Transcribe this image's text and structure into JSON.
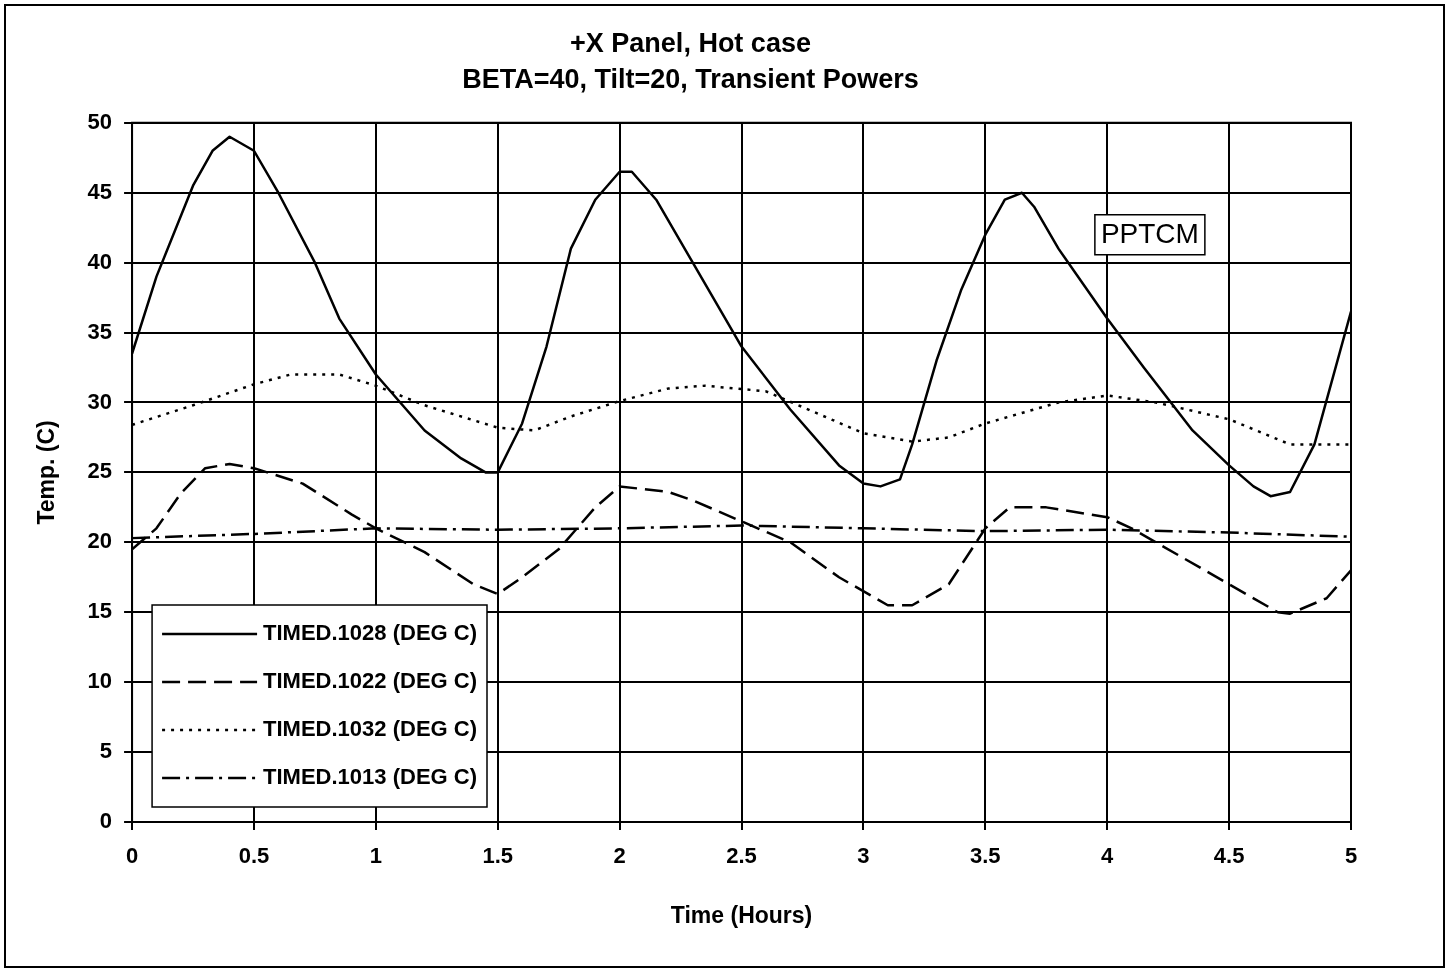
{
  "chart_data": {
    "type": "line",
    "title": "+X Panel, Hot case",
    "subtitle": "BETA=40, Tilt=20, Transient Powers",
    "xlabel": "Time (Hours)",
    "ylabel": "Temp. (C)",
    "xlim": [
      0,
      5
    ],
    "xticks": [
      0,
      0.5,
      1,
      1.5,
      2,
      2.5,
      3,
      3.5,
      4,
      4.5,
      5
    ],
    "ylim": [
      0,
      50
    ],
    "yticks": [
      0,
      5,
      10,
      15,
      20,
      25,
      30,
      35,
      40,
      45,
      50
    ],
    "grid": true,
    "legend": "bottom left",
    "marker": "none",
    "annotations": [
      "PPTCM"
    ],
    "series": [
      {
        "name": "TIMED.1028 (DEG C)",
        "color": "#000000",
        "line_style": "solid",
        "x": [
          0,
          0.1,
          0.25,
          0.33,
          0.4,
          0.5,
          0.6,
          0.75,
          0.85,
          1,
          1.2,
          1.35,
          1.45,
          1.5,
          1.6,
          1.7,
          1.8,
          1.9,
          2,
          2.05,
          2.15,
          2.3,
          2.5,
          2.7,
          2.9,
          3,
          3.07,
          3.15,
          3.2,
          3.3,
          3.4,
          3.5,
          3.58,
          3.65,
          3.7,
          3.8,
          4,
          4.15,
          4.35,
          4.5,
          4.6,
          4.67,
          4.75,
          4.85,
          5
        ],
        "values": [
          33.5,
          39,
          45.5,
          48,
          49,
          48,
          45,
          40,
          36,
          32,
          28,
          26,
          25,
          25,
          28.5,
          34,
          41,
          44.5,
          46.5,
          46.5,
          44.5,
          40,
          34,
          29.5,
          25.5,
          24.2,
          24,
          24.5,
          27,
          33,
          38,
          42,
          44.5,
          45,
          44,
          41,
          36,
          32.5,
          28,
          25.5,
          24,
          23.3,
          23.6,
          27,
          36.5
        ]
      },
      {
        "name": "TIMED.1022 (DEG C)",
        "color": "#000000",
        "line_style": "dashed",
        "x": [
          0,
          0.1,
          0.2,
          0.3,
          0.4,
          0.5,
          0.7,
          0.9,
          1,
          1.2,
          1.4,
          1.5,
          1.6,
          1.75,
          1.9,
          2,
          2.2,
          2.3,
          2.5,
          2.7,
          2.9,
          3.1,
          3.2,
          3.35,
          3.5,
          3.6,
          3.75,
          4,
          4.1,
          4.3,
          4.5,
          4.7,
          4.75,
          4.9,
          5
        ],
        "values": [
          19.5,
          21,
          23.5,
          25.3,
          25.6,
          25.3,
          24.2,
          22,
          21,
          19.3,
          17,
          16.3,
          17.5,
          19.5,
          22.5,
          24,
          23.6,
          23,
          21.5,
          20,
          17.5,
          15.5,
          15.5,
          17,
          21,
          22.5,
          22.5,
          21.8,
          21,
          19,
          17,
          15,
          14.9,
          16,
          18
        ]
      },
      {
        "name": "TIMED.1032 (DEG C)",
        "color": "#000000",
        "line_style": "dotted",
        "x": [
          0,
          0.25,
          0.5,
          0.65,
          0.85,
          1,
          1.2,
          1.5,
          1.65,
          1.8,
          2,
          2.2,
          2.35,
          2.6,
          2.8,
          3,
          3.2,
          3.35,
          3.5,
          3.8,
          4,
          4.2,
          4.5,
          4.75,
          5
        ],
        "values": [
          28.4,
          29.8,
          31.3,
          32,
          32,
          31.2,
          29.8,
          28.2,
          28,
          29,
          30.1,
          31,
          31.2,
          30.8,
          29.3,
          27.8,
          27.2,
          27.5,
          28.5,
          30,
          30.5,
          30,
          28.8,
          27,
          27
        ]
      },
      {
        "name": "TIMED.1013 (DEG C)",
        "color": "#000000",
        "line_style": "dashdot",
        "x": [
          0,
          0.5,
          1,
          1.5,
          2,
          2.5,
          3,
          3.5,
          4,
          4.5,
          5
        ],
        "values": [
          20.3,
          20.6,
          21,
          20.9,
          21,
          21.2,
          21,
          20.8,
          20.9,
          20.7,
          20.4
        ]
      }
    ]
  }
}
